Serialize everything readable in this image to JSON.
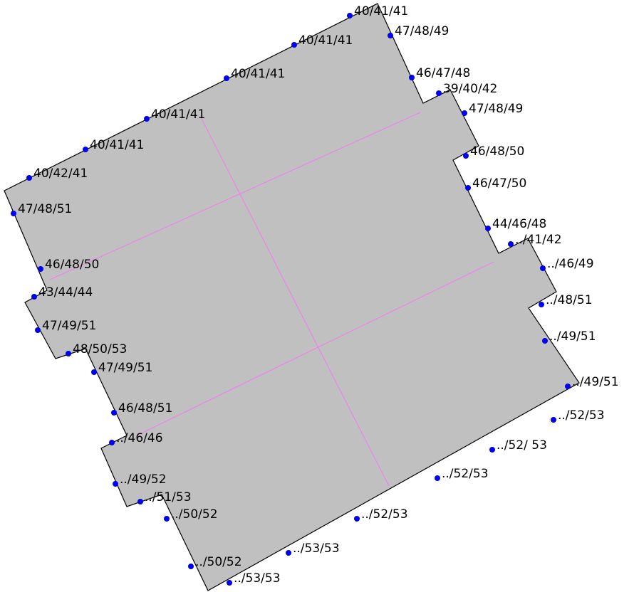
{
  "colors": {
    "roof_fill": "#c0c0c0",
    "outline": "#000000",
    "ridge_line": "#ee82ee",
    "point": "#0000ee",
    "label": "#000000"
  },
  "points": [
    {
      "label": "40/41/41"
    },
    {
      "label": "47/48/49"
    },
    {
      "label": "40/41/41"
    },
    {
      "label": "40/41/41"
    },
    {
      "label": "46/47/48"
    },
    {
      "label": "39/40/42"
    },
    {
      "label": "47/48/49"
    },
    {
      "label": "40/41/41"
    },
    {
      "label": "40/41/41"
    },
    {
      "label": "46/48/50"
    },
    {
      "label": "40/42/41"
    },
    {
      "label": "46/47/50"
    },
    {
      "label": "47/48/51"
    },
    {
      "label": "44/46/48"
    },
    {
      "label": "../41/42"
    },
    {
      "label": "46/48/50"
    },
    {
      "label": "../46/49"
    },
    {
      "label": "43/44/44"
    },
    {
      "label": "../48/51"
    },
    {
      "label": "47/49/51"
    },
    {
      "label": "../49/51"
    },
    {
      "label": "48/50/53"
    },
    {
      "label": "47/49/51"
    },
    {
      "label": "../49/51"
    },
    {
      "label": "46/48/51"
    },
    {
      "label": "../52/53"
    },
    {
      "label": "../46/46"
    },
    {
      "label": "../52/ 53"
    },
    {
      "label": "../49/52"
    },
    {
      "label": "../52/53"
    },
    {
      "label": "../51/53"
    },
    {
      "label": "../50/52"
    },
    {
      "label": "../52/53"
    },
    {
      "label": "../53/53"
    },
    {
      "label": "../50/52"
    },
    {
      "label": "../53/53"
    }
  ]
}
